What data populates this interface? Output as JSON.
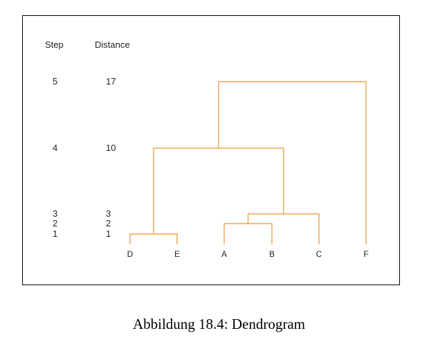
{
  "caption": "Abbildung 18.4: Dendrogram",
  "chart_data": {
    "type": "dendrogram",
    "column_headers": {
      "step": "Step",
      "distance": "Distance"
    },
    "leaves": [
      "D",
      "E",
      "A",
      "B",
      "C",
      "F"
    ],
    "merges": [
      {
        "step": 1,
        "distance": 1,
        "left": "D",
        "right": "E"
      },
      {
        "step": 2,
        "distance": 2,
        "left": "A",
        "right": "B"
      },
      {
        "step": 3,
        "distance": 3,
        "left": "AB",
        "right": "C"
      },
      {
        "step": 4,
        "distance": 10,
        "left": "DE",
        "right": "ABC"
      },
      {
        "step": 5,
        "distance": 17,
        "left": "DEABC",
        "right": "F"
      }
    ],
    "line_color": "#f0a050"
  }
}
